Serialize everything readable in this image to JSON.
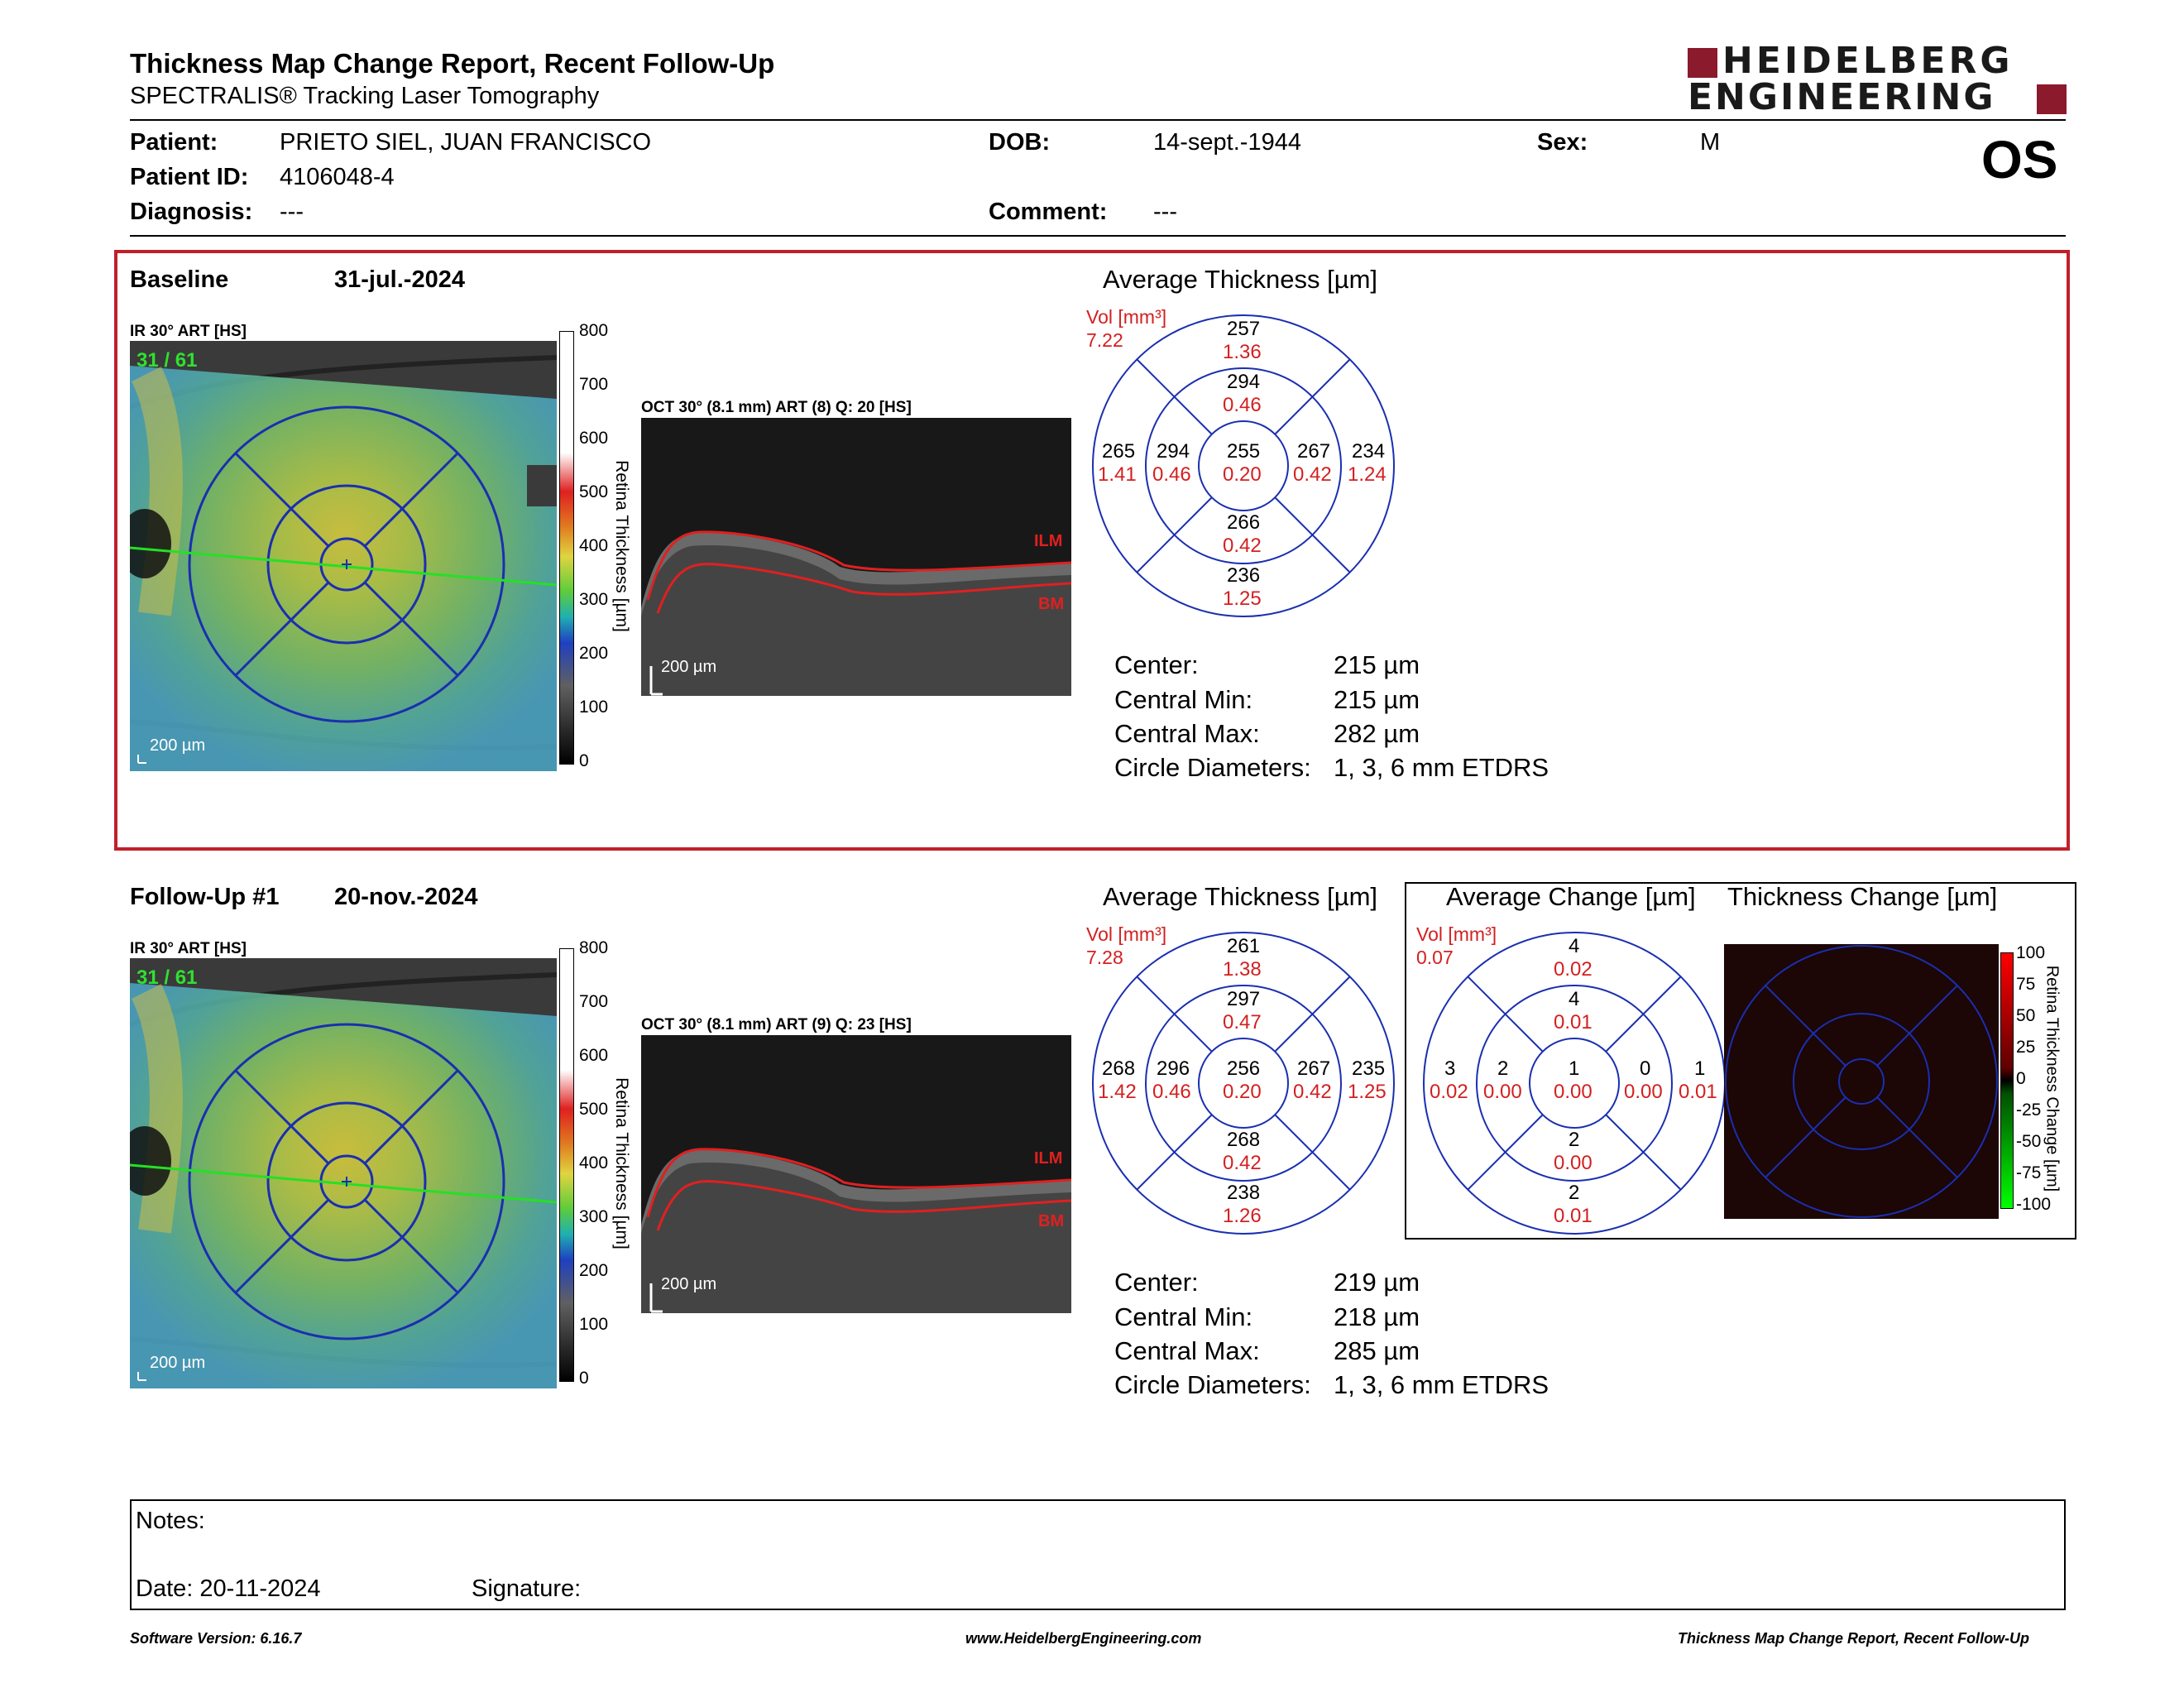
{
  "header": {
    "title": "Thickness Map Change Report, Recent Follow-Up",
    "subtitle": "SPECTRALIS® Tracking Laser Tomography",
    "logo_line1": "HEIDELBERG",
    "logo_line2": "ENGINEERING",
    "eye": "OS"
  },
  "patient": {
    "patient_label": "Patient:",
    "patient_value": "PRIETO SIEL, JUAN FRANCISCO",
    "id_label": "Patient ID:",
    "id_value": "4106048-4",
    "diagnosis_label": "Diagnosis:",
    "diagnosis_value": "---",
    "dob_label": "DOB:",
    "dob_value": "14-sept.-1944",
    "comment_label": "Comment:",
    "comment_value": "---",
    "sex_label": "Sex:",
    "sex_value": "M"
  },
  "baseline": {
    "label": "Baseline",
    "date": "31-jul.-2024",
    "ir_label": "IR 30° ART [HS]",
    "ir_overlay": "31 / 61",
    "scale": "200 µm",
    "oct_label": "OCT 30° (8.1 mm) ART (8) Q: 20 [HS]",
    "ilm": "ILM",
    "bm": "BM",
    "colorbar_title": "Retina Thickness [µm]",
    "colorbar_ticks": [
      "800",
      "700",
      "600",
      "500",
      "400",
      "300",
      "200",
      "100",
      "0"
    ],
    "avg_title": "Average Thickness [µm]",
    "vol_label": "Vol [mm³]",
    "vol_value": "7.22",
    "sectors": {
      "outer_top": [
        "257",
        "1.36"
      ],
      "inner_top": [
        "294",
        "0.46"
      ],
      "outer_left": [
        "265",
        "1.41"
      ],
      "inner_left": [
        "294",
        "0.46"
      ],
      "center": [
        "255",
        "0.20"
      ],
      "inner_right": [
        "267",
        "0.42"
      ],
      "outer_right": [
        "234",
        "1.24"
      ],
      "inner_bottom": [
        "266",
        "0.42"
      ],
      "outer_bottom": [
        "236",
        "1.25"
      ]
    },
    "measures": [
      {
        "label": "Center:",
        "value": "215 µm"
      },
      {
        "label": "Central Min:",
        "value": "215 µm"
      },
      {
        "label": "Central Max:",
        "value": "282 µm"
      },
      {
        "label": "Circle Diameters:",
        "value": "1, 3, 6 mm ETDRS"
      }
    ]
  },
  "followup": {
    "label": "Follow-Up #1",
    "date": "20-nov.-2024",
    "ir_label": "IR 30° ART [HS]",
    "ir_overlay": "31 / 61",
    "scale": "200 µm",
    "oct_label": "OCT 30° (8.1 mm) ART (9) Q: 23 [HS]",
    "ilm": "ILM",
    "bm": "BM",
    "colorbar_title": "Retina Thickness [µm]",
    "colorbar_ticks": [
      "800",
      "700",
      "600",
      "500",
      "400",
      "300",
      "200",
      "100",
      "0"
    ],
    "avg_title": "Average Thickness [µm]",
    "vol_label": "Vol [mm³]",
    "vol_value": "7.28",
    "sectors": {
      "outer_top": [
        "261",
        "1.38"
      ],
      "inner_top": [
        "297",
        "0.47"
      ],
      "outer_left": [
        "268",
        "1.42"
      ],
      "inner_left": [
        "296",
        "0.46"
      ],
      "center": [
        "256",
        "0.20"
      ],
      "inner_right": [
        "267",
        "0.42"
      ],
      "outer_right": [
        "235",
        "1.25"
      ],
      "inner_bottom": [
        "268",
        "0.42"
      ],
      "outer_bottom": [
        "238",
        "1.26"
      ]
    },
    "measures": [
      {
        "label": "Center:",
        "value": "219 µm"
      },
      {
        "label": "Central Min:",
        "value": "218 µm"
      },
      {
        "label": "Central Max:",
        "value": "285 µm"
      },
      {
        "label": "Circle Diameters:",
        "value": "1, 3, 6 mm ETDRS"
      }
    ]
  },
  "change": {
    "avg_title": "Average Change [µm]",
    "thick_title": "Thickness Change [µm]",
    "vol_label": "Vol [mm³]",
    "vol_value": "0.07",
    "sectors": {
      "outer_top": [
        "4",
        "0.02"
      ],
      "inner_top": [
        "4",
        "0.01"
      ],
      "outer_left": [
        "3",
        "0.02"
      ],
      "inner_left": [
        "2",
        "0.00"
      ],
      "center": [
        "1",
        "0.00"
      ],
      "inner_right": [
        "0",
        "0.00"
      ],
      "outer_right": [
        "1",
        "0.01"
      ],
      "inner_bottom": [
        "2",
        "0.00"
      ],
      "outer_bottom": [
        "2",
        "0.01"
      ]
    },
    "colorbar_title": "Retina Thickness Change [µm]",
    "colorbar_ticks": [
      "100",
      "75",
      "50",
      "25",
      "0",
      "-25",
      "-50",
      "-75",
      "-100"
    ]
  },
  "notes": {
    "notes_label": "Notes:",
    "date_label": "Date: 20-11-2024",
    "signature_label": "Signature:"
  },
  "footer": {
    "left": "Software Version: 6.16.7",
    "center": "www.HeidelbergEngineering.com",
    "right": "Thickness Map Change Report, Recent Follow-Up"
  },
  "colors": {
    "accent_red": "#c0202a",
    "value_red": "#d32020",
    "grid_blue": "#1a2fb0"
  }
}
